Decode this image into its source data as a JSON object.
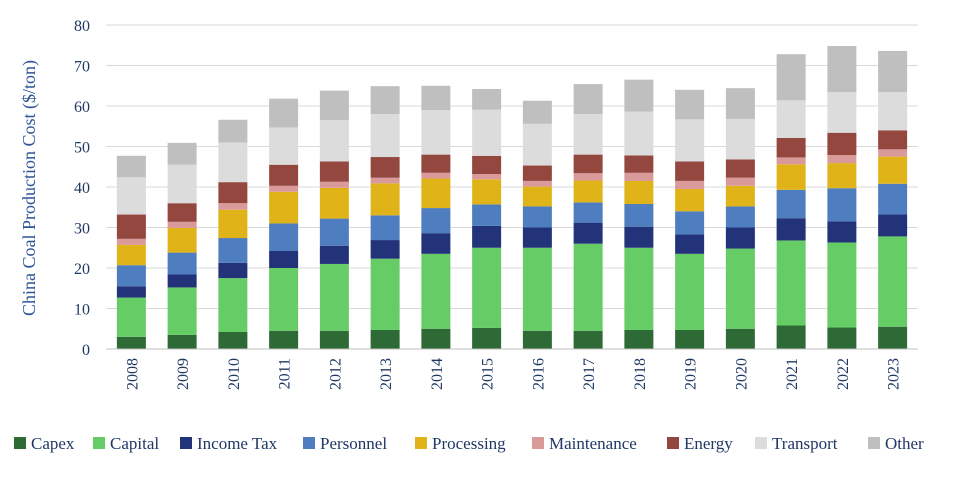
{
  "chart_data": {
    "type": "bar",
    "stacked": true,
    "ylabel": "China Coal Production Cost ($/ton)",
    "xlabel": "",
    "ylim": [
      0,
      80
    ],
    "yticks": [
      0,
      10,
      20,
      30,
      40,
      50,
      60,
      70,
      80
    ],
    "grid": true,
    "legend_position": "bottom",
    "categories": [
      "2008",
      "2009",
      "2010",
      "2011",
      "2012",
      "2013",
      "2014",
      "2015",
      "2016",
      "2017",
      "2018",
      "2019",
      "2020",
      "2021",
      "2022",
      "2023"
    ],
    "series": [
      {
        "name": "Capex",
        "color": "#2d6a36",
        "values": [
          3.0,
          3.5,
          4.2,
          4.5,
          4.5,
          4.7,
          5.0,
          5.2,
          4.5,
          4.5,
          4.7,
          4.7,
          5.0,
          5.8,
          5.3,
          5.5
        ]
      },
      {
        "name": "Capital",
        "color": "#66cc66",
        "values": [
          9.7,
          11.7,
          13.3,
          15.5,
          16.5,
          17.6,
          18.5,
          19.8,
          20.5,
          21.5,
          20.3,
          18.8,
          19.8,
          21.0,
          21.0,
          22.3
        ]
      },
      {
        "name": "Income Tax",
        "color": "#23337a",
        "values": [
          2.8,
          3.2,
          3.8,
          4.2,
          4.5,
          4.6,
          5.1,
          5.4,
          5.0,
          5.2,
          5.2,
          4.8,
          5.2,
          5.5,
          5.2,
          5.4
        ]
      },
      {
        "name": "Personnel",
        "color": "#4f7ec0",
        "values": [
          5.2,
          5.4,
          6.1,
          6.8,
          6.7,
          6.1,
          6.2,
          5.3,
          5.2,
          5.0,
          5.6,
          5.7,
          5.2,
          7.0,
          8.2,
          7.6
        ]
      },
      {
        "name": "Processing",
        "color": "#e0b418",
        "values": [
          5.0,
          6.1,
          7.0,
          7.8,
          7.6,
          7.9,
          7.3,
          6.2,
          4.9,
          5.4,
          5.7,
          5.5,
          5.1,
          6.3,
          6.2,
          6.7
        ]
      },
      {
        "name": "Maintenance",
        "color": "#d99a99",
        "values": [
          1.5,
          1.5,
          1.6,
          1.5,
          1.5,
          1.4,
          1.4,
          1.3,
          1.4,
          1.8,
          2.0,
          2.0,
          2.0,
          1.7,
          2.0,
          1.8
        ]
      },
      {
        "name": "Energy",
        "color": "#94473f",
        "values": [
          6.0,
          4.6,
          5.2,
          5.2,
          5.0,
          5.1,
          4.5,
          4.5,
          3.8,
          4.6,
          4.3,
          4.8,
          4.5,
          4.8,
          5.5,
          4.7
        ]
      },
      {
        "name": "Transport",
        "color": "#dcdcdc",
        "values": [
          9.2,
          9.5,
          9.8,
          9.2,
          10.2,
          10.6,
          11.0,
          11.4,
          10.3,
          10.0,
          10.8,
          10.4,
          10.0,
          9.3,
          10.0,
          9.4
        ]
      },
      {
        "name": "Other",
        "color": "#bfbfbf",
        "values": [
          5.3,
          5.4,
          5.6,
          7.1,
          7.3,
          6.9,
          6.0,
          5.1,
          5.7,
          7.4,
          7.9,
          7.3,
          7.6,
          11.4,
          11.4,
          10.2
        ]
      }
    ]
  }
}
